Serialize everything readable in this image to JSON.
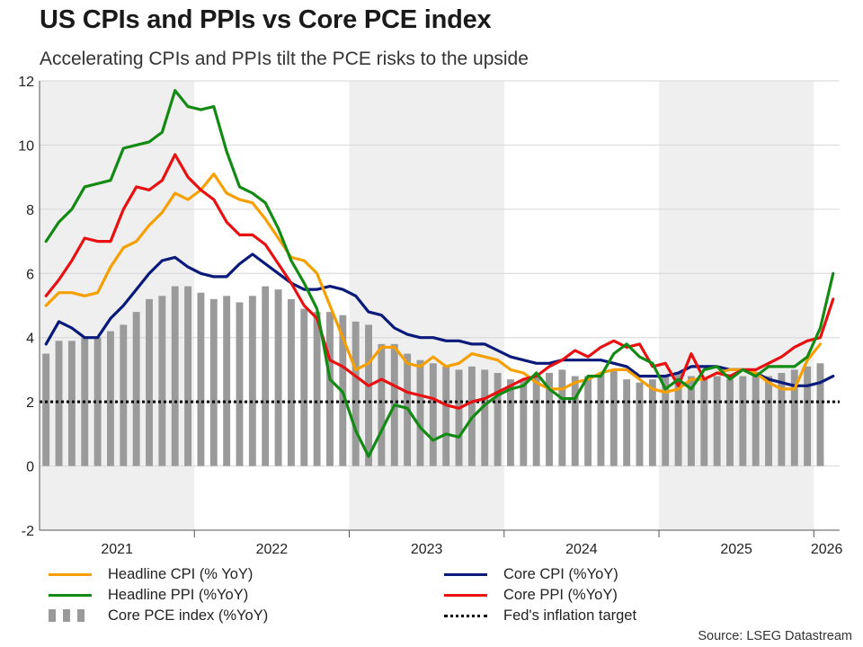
{
  "header": {
    "title": "US CPIs and PPIs vs Core PCE index",
    "subtitle": "Accelerating CPIs and PPIs tilt the PCE risks to the upside"
  },
  "source": "Source: LSEG Datastream",
  "chart_data": {
    "type": "line",
    "title": "US CPIs and PPIs vs Core PCE index",
    "subtitle": "Accelerating CPIs and PPIs tilt the PCE risks to the upside",
    "ylim": [
      -2,
      12
    ],
    "yticks": [
      -2,
      0,
      2,
      4,
      6,
      8,
      10,
      12
    ],
    "x_start": "2021-01",
    "x_end": "2026-03",
    "year_labels": [
      "2021",
      "2022",
      "2023",
      "2024",
      "2025",
      "2026"
    ],
    "shaded_years": [
      "2021",
      "2023",
      "2025"
    ],
    "grid": "horizontal",
    "legend_position": "bottom",
    "target": {
      "name": "Fed's inflation target",
      "value": 2,
      "color": "#000000"
    },
    "series": [
      {
        "name": "Headline CPI (% YoY)",
        "color": "#f5a000",
        "start": "2021-01",
        "values": [
          5.0,
          5.4,
          5.4,
          5.3,
          5.4,
          6.2,
          6.8,
          7.0,
          7.5,
          7.9,
          8.5,
          8.3,
          8.6,
          9.1,
          8.5,
          8.3,
          8.2,
          7.7,
          7.1,
          6.5,
          6.4,
          6.0,
          5.0,
          4.0,
          3.0,
          3.2,
          3.7,
          3.7,
          3.2,
          3.1,
          3.4,
          3.1,
          3.2,
          3.5,
          3.4,
          3.3,
          3.0,
          2.9,
          2.6,
          2.4,
          2.4,
          2.6,
          2.7,
          2.9,
          3.0,
          3.0,
          2.7,
          2.4,
          2.3,
          2.4,
          2.7,
          2.7,
          2.9,
          3.0,
          3.0,
          2.9,
          2.6,
          2.4,
          2.4,
          3.3,
          3.8
        ]
      },
      {
        "name": "Core CPI (%YoY)",
        "color": "#0a1a7a",
        "start": "2021-01",
        "values": [
          3.8,
          4.5,
          4.3,
          4.0,
          4.0,
          4.6,
          5.0,
          5.5,
          6.0,
          6.4,
          6.5,
          6.2,
          6.0,
          5.9,
          5.9,
          6.3,
          6.6,
          6.3,
          6.0,
          5.7,
          5.5,
          5.5,
          5.6,
          5.5,
          5.3,
          4.8,
          4.7,
          4.3,
          4.1,
          4.0,
          4.0,
          3.9,
          3.9,
          3.8,
          3.8,
          3.6,
          3.4,
          3.3,
          3.2,
          3.2,
          3.3,
          3.3,
          3.3,
          3.3,
          3.2,
          3.1,
          2.8,
          2.8,
          2.8,
          2.9,
          3.1,
          3.1,
          3.1,
          3.0,
          3.0,
          2.9,
          2.7,
          2.6,
          2.5,
          2.5,
          2.6,
          2.8
        ]
      },
      {
        "name": "Headline PPI (%YoY)",
        "color": "#138a13",
        "start": "2021-01",
        "values": [
          7.0,
          7.6,
          8.0,
          8.7,
          8.8,
          8.9,
          9.9,
          10.0,
          10.1,
          10.4,
          11.7,
          11.2,
          11.1,
          11.2,
          9.8,
          8.7,
          8.5,
          8.2,
          7.4,
          6.4,
          5.7,
          4.9,
          2.7,
          2.3,
          1.1,
          0.3,
          1.1,
          1.9,
          1.8,
          1.2,
          0.8,
          1.0,
          0.9,
          1.5,
          1.9,
          2.2,
          2.4,
          2.5,
          2.9,
          2.4,
          2.1,
          2.1,
          2.8,
          2.8,
          3.5,
          3.8,
          3.4,
          3.2,
          2.4,
          2.7,
          2.4,
          3.0,
          3.1,
          2.7,
          3.0,
          2.8,
          3.1,
          3.1,
          3.1,
          3.4,
          4.3,
          6.0
        ]
      },
      {
        "name": "Core PPI (%YoY)",
        "color": "#e81010",
        "start": "2021-01",
        "values": [
          5.3,
          5.8,
          6.4,
          7.1,
          7.0,
          7.0,
          8.0,
          8.7,
          8.6,
          8.9,
          9.7,
          9.0,
          8.6,
          8.3,
          7.6,
          7.2,
          7.2,
          6.9,
          6.3,
          5.7,
          5.0,
          4.6,
          3.3,
          3.1,
          2.8,
          2.5,
          2.7,
          2.5,
          2.3,
          2.2,
          2.1,
          1.9,
          1.8,
          2.0,
          2.1,
          2.3,
          2.5,
          2.7,
          2.8,
          3.1,
          3.3,
          3.6,
          3.4,
          3.7,
          3.9,
          3.7,
          3.8,
          3.1,
          3.2,
          2.5,
          3.5,
          2.7,
          2.9,
          2.8,
          3.0,
          3.0,
          3.2,
          3.4,
          3.7,
          3.9,
          4.0,
          5.2
        ]
      },
      {
        "name": "Core PCE index (%YoY)",
        "color": "#9a9a9a",
        "type": "bar",
        "start": "2021-01",
        "values": [
          3.5,
          3.9,
          3.9,
          4.0,
          4.0,
          4.2,
          4.4,
          4.8,
          5.2,
          5.3,
          5.6,
          5.6,
          5.4,
          5.2,
          5.3,
          5.1,
          5.3,
          5.6,
          5.5,
          5.2,
          4.9,
          4.8,
          4.8,
          4.7,
          4.5,
          4.4,
          3.8,
          3.8,
          3.5,
          3.3,
          3.2,
          3.1,
          3.0,
          3.1,
          3.0,
          2.9,
          2.7,
          2.7,
          2.8,
          2.9,
          3.0,
          2.8,
          2.8,
          2.9,
          3.0,
          2.7,
          2.6,
          2.7,
          2.8,
          2.9,
          2.8,
          2.7,
          2.8,
          2.7,
          2.8,
          2.9,
          2.8,
          2.9,
          3.0,
          3.1,
          3.2
        ]
      }
    ]
  },
  "legend": {
    "headline_cpi": "Headline CPI (% YoY)",
    "core_cpi": "Core CPI (%YoY)",
    "headline_ppi": "Headline PPI (%YoY)",
    "core_ppi": "Core PPI (%YoY)",
    "core_pce": "Core PCE index (%YoY)",
    "fed_target": "Fed's inflation target"
  }
}
